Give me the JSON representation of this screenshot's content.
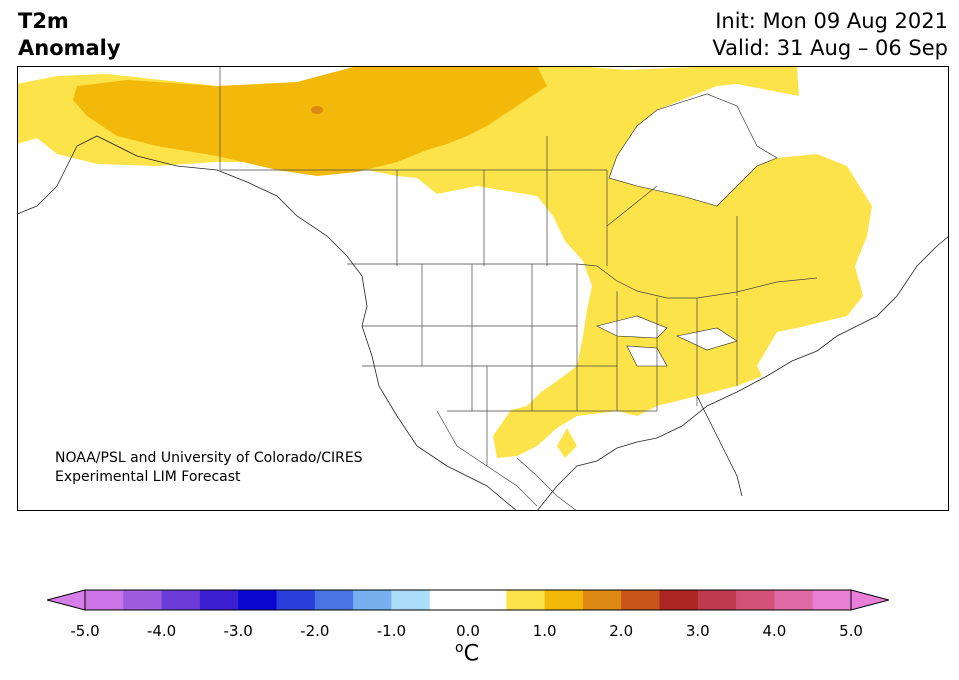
{
  "title": {
    "left_line1": "T2m",
    "left_line2": "Anomaly",
    "right_line1": "Init: Mon 09 Aug 2021",
    "right_line2": "Valid: 31 Aug – 06 Sep"
  },
  "credit": {
    "line1": "NOAA/PSL and University of Colorado/CIRES",
    "line2": "Experimental LIM Forecast"
  },
  "map": {
    "region": "North America",
    "anomaly_colors": {
      "0.5_to_1.0": "#fde34a",
      "1.0_to_1.5": "#f2b90b",
      "1.5_to_2.0": "#dc8a14"
    }
  },
  "colorbar": {
    "unit_symbol": "C",
    "unit_prefix": "o",
    "tick_labels": [
      "-5.0",
      "-4.0",
      "-3.0",
      "-2.0",
      "-1.0",
      "0.0",
      "1.0",
      "2.0",
      "3.0",
      "4.0",
      "5.0"
    ],
    "min_extend_color": "#d57ee8",
    "max_extend_color": "#e97fd8",
    "bins": [
      {
        "from": -5.0,
        "to": -4.5,
        "color": "#cc74e5"
      },
      {
        "from": -4.5,
        "to": -4.0,
        "color": "#9e5ce0"
      },
      {
        "from": -4.0,
        "to": -3.5,
        "color": "#6d3cd8"
      },
      {
        "from": -3.5,
        "to": -3.0,
        "color": "#3a1ed0"
      },
      {
        "from": -3.0,
        "to": -2.5,
        "color": "#0a06cf"
      },
      {
        "from": -2.5,
        "to": -2.0,
        "color": "#2b3edc"
      },
      {
        "from": -2.0,
        "to": -1.5,
        "color": "#4a74e2"
      },
      {
        "from": -1.5,
        "to": -1.0,
        "color": "#77b0ee"
      },
      {
        "from": -1.0,
        "to": -0.5,
        "color": "#abdcf8"
      },
      {
        "from": -0.5,
        "to": 0.0,
        "color": "#ffffff"
      },
      {
        "from": 0.0,
        "to": 0.5,
        "color": "#ffffff"
      },
      {
        "from": 0.5,
        "to": 1.0,
        "color": "#fde34a"
      },
      {
        "from": 1.0,
        "to": 1.5,
        "color": "#f2b90b"
      },
      {
        "from": 1.5,
        "to": 2.0,
        "color": "#dc8a14"
      },
      {
        "from": 2.0,
        "to": 2.5,
        "color": "#c8561b"
      },
      {
        "from": 2.5,
        "to": 3.0,
        "color": "#ab2622"
      },
      {
        "from": 3.0,
        "to": 3.5,
        "color": "#be3a4e"
      },
      {
        "from": 3.5,
        "to": 4.0,
        "color": "#d25277"
      },
      {
        "from": 4.0,
        "to": 4.5,
        "color": "#e06aa5"
      },
      {
        "from": 4.5,
        "to": 5.0,
        "color": "#e87fd4"
      }
    ]
  }
}
